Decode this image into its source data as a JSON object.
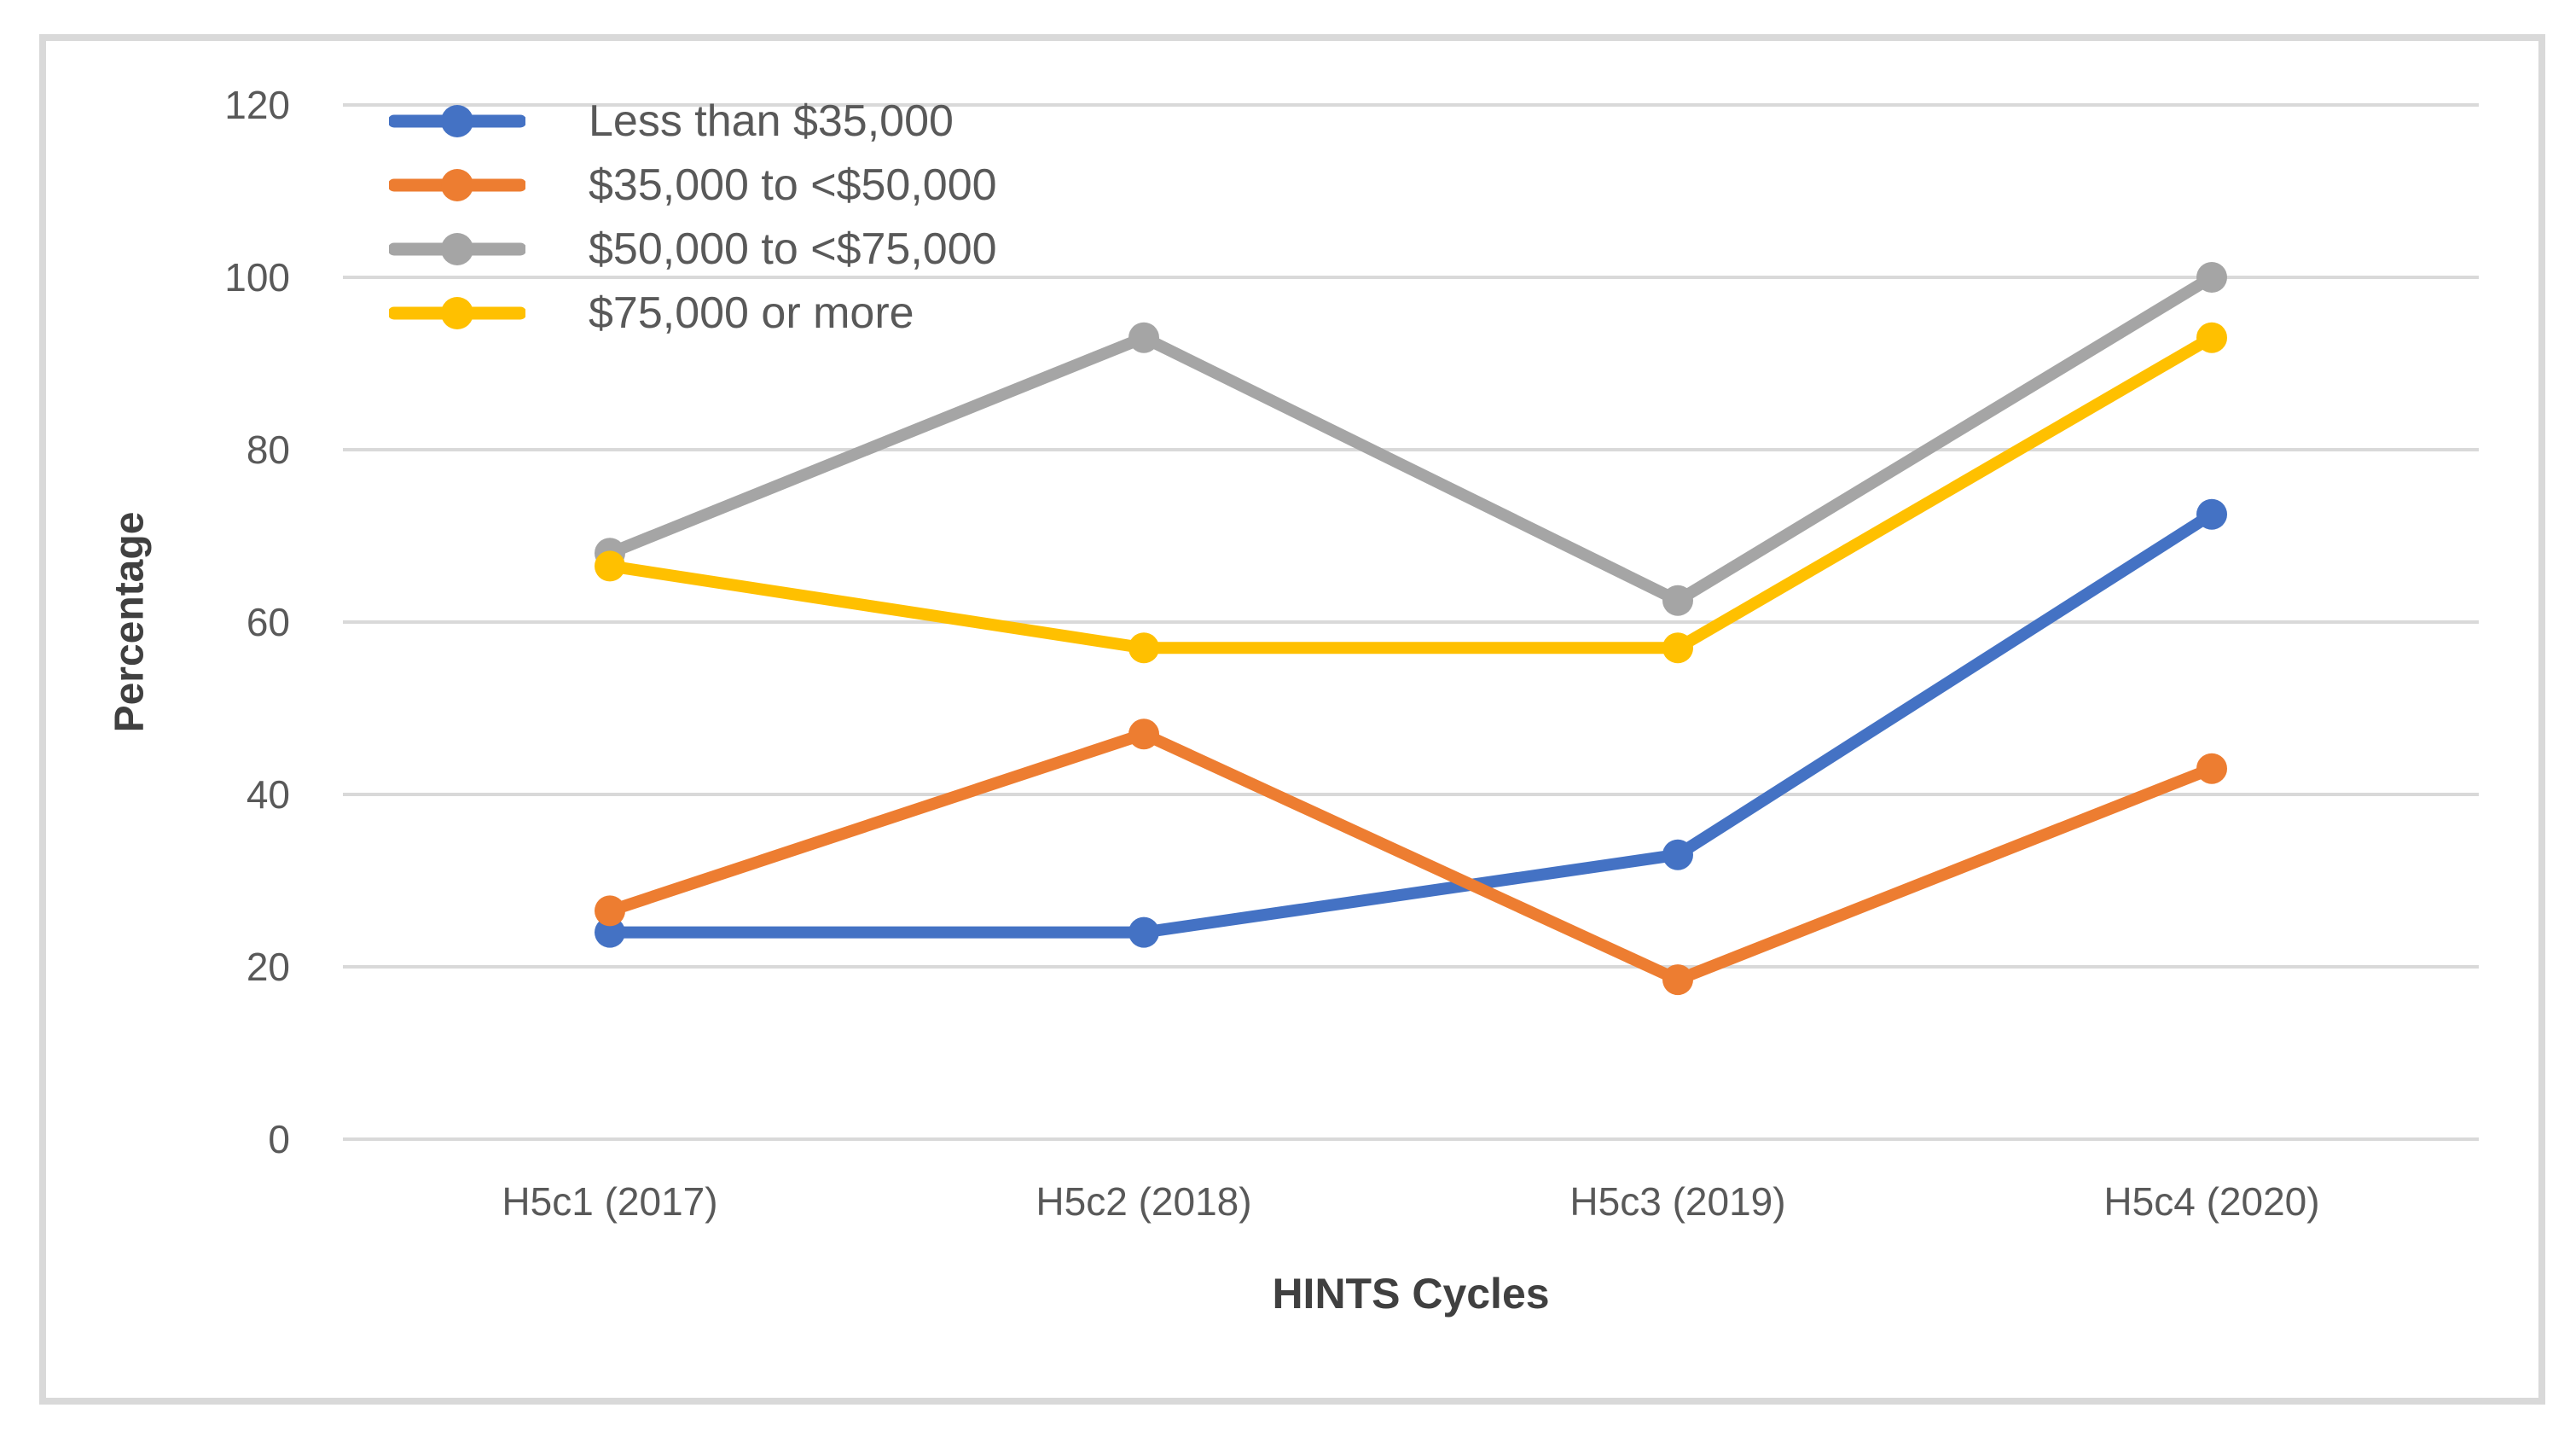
{
  "figure": {
    "background": "#FFFFFF",
    "border_color": "#D9D9D9",
    "grid_color": "#D9D9D9",
    "tick_label_color": "#595959",
    "axis_title_color": "#404040"
  },
  "chart_data": {
    "type": "line",
    "title": "",
    "xlabel": "HINTS Cycles",
    "ylabel": "Percentage",
    "categories": [
      "H5c1 (2017)",
      "H5c2 (2018)",
      "H5c3 (2019)",
      "H5c4 (2020)"
    ],
    "ylim": [
      0,
      120
    ],
    "y_ticks": [
      0,
      20,
      40,
      60,
      80,
      100,
      120
    ],
    "ytick_labels": [
      "120",
      "100",
      "80",
      "60",
      "40",
      "20",
      "0"
    ],
    "grid": "horizontal-only",
    "legend_position": "inside-top-left",
    "marker": "circle",
    "series": [
      {
        "name": "Less than $35,000",
        "color": "#4472C4",
        "values": [
          24,
          24,
          33,
          72.5
        ]
      },
      {
        "name": "$35,000 to <$50,000",
        "color": "#ED7D31",
        "values": [
          26.5,
          47,
          18.5,
          43
        ]
      },
      {
        "name": "$50,000 to <$75,000",
        "color": "#A5A5A5",
        "values": [
          68,
          93,
          62.5,
          100
        ]
      },
      {
        "name": "$75,000 or more",
        "color": "#FFC000",
        "values": [
          66.5,
          57,
          57,
          93
        ]
      }
    ]
  }
}
